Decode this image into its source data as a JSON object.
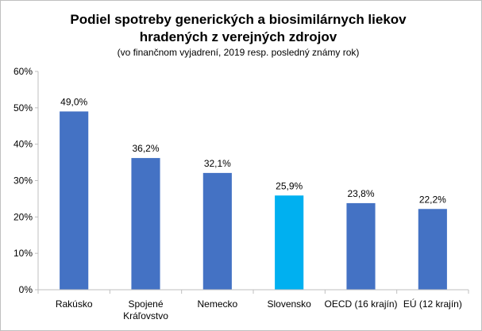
{
  "chart_data": {
    "type": "bar",
    "title_lines": [
      "Podiel spotreby generických a biosimilárnych liekov",
      "hradených z verejných zdrojov"
    ],
    "subtitle": "(vo finančnom vyjadrení, 2019 resp. posledný známy rok)",
    "categories": [
      [
        "Rakúsko"
      ],
      [
        "Spojené",
        "Kráľovstvo"
      ],
      [
        "Nemecko"
      ],
      [
        "Slovensko"
      ],
      [
        "OECD (16 krajín)"
      ],
      [
        "EÚ (12 krajín)"
      ]
    ],
    "values": [
      49.0,
      36.2,
      32.1,
      25.9,
      23.8,
      22.2
    ],
    "value_labels": [
      "49,0%",
      "36,2%",
      "32,1%",
      "25,9%",
      "23,8%",
      "22,2%"
    ],
    "bar_colors": [
      "#4472C4",
      "#4472C4",
      "#4472C4",
      "#00B0F0",
      "#4472C4",
      "#4472C4"
    ],
    "ylim": [
      0,
      60
    ],
    "yticks": [
      0,
      10,
      20,
      30,
      40,
      50,
      60
    ],
    "ytick_labels": [
      "0%",
      "10%",
      "20%",
      "30%",
      "40%",
      "50%",
      "60%"
    ],
    "grid": false,
    "xlabel": "",
    "ylabel": ""
  }
}
